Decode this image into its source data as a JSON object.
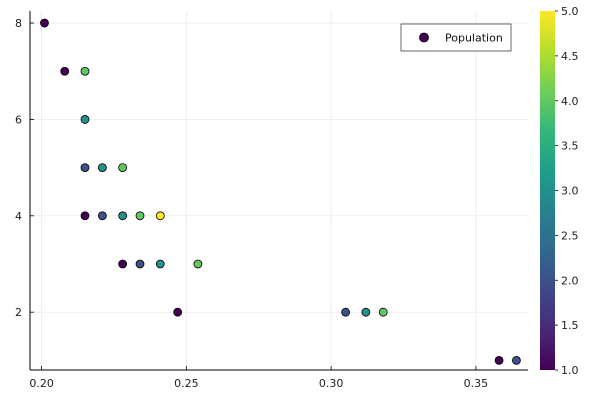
{
  "chart_data": {
    "type": "scatter",
    "title": "",
    "xlabel": "",
    "ylabel": "",
    "xlim": [
      0.196,
      0.368
    ],
    "ylim": [
      0.8,
      8.25
    ],
    "x_ticks": [
      0.2,
      0.25,
      0.3,
      0.35
    ],
    "x_tick_labels": [
      "0.20",
      "0.25",
      "0.30",
      "0.35"
    ],
    "y_ticks": [
      2,
      4,
      6,
      8
    ],
    "y_tick_labels": [
      "2",
      "4",
      "6",
      "8"
    ],
    "grid": true,
    "legend": {
      "entries": [
        "Population"
      ],
      "position": "top-right"
    },
    "colorbar": {
      "colormap": "viridis",
      "min": 1.0,
      "max": 5.0,
      "ticks": [
        1.0,
        1.5,
        2.0,
        2.5,
        3.0,
        3.5,
        4.0,
        4.5,
        5.0
      ],
      "tick_labels": [
        "1.0",
        "1.5",
        "2.0",
        "2.5",
        "3.0",
        "3.5",
        "4.0",
        "4.5",
        "5.0"
      ]
    },
    "series": [
      {
        "name": "Population",
        "points": [
          {
            "x": 0.201,
            "y": 8,
            "c": 1
          },
          {
            "x": 0.208,
            "y": 7,
            "c": 1
          },
          {
            "x": 0.215,
            "y": 7,
            "c": 4
          },
          {
            "x": 0.215,
            "y": 6,
            "c": 3
          },
          {
            "x": 0.215,
            "y": 5,
            "c": 2
          },
          {
            "x": 0.221,
            "y": 5,
            "c": 3
          },
          {
            "x": 0.228,
            "y": 5,
            "c": 4
          },
          {
            "x": 0.215,
            "y": 4,
            "c": 1
          },
          {
            "x": 0.221,
            "y": 4,
            "c": 2
          },
          {
            "x": 0.228,
            "y": 4,
            "c": 3
          },
          {
            "x": 0.234,
            "y": 4,
            "c": 4
          },
          {
            "x": 0.241,
            "y": 4,
            "c": 5
          },
          {
            "x": 0.228,
            "y": 3,
            "c": 1
          },
          {
            "x": 0.234,
            "y": 3,
            "c": 2
          },
          {
            "x": 0.241,
            "y": 3,
            "c": 3
          },
          {
            "x": 0.254,
            "y": 3,
            "c": 4
          },
          {
            "x": 0.247,
            "y": 2,
            "c": 1
          },
          {
            "x": 0.305,
            "y": 2,
            "c": 2
          },
          {
            "x": 0.312,
            "y": 2,
            "c": 3
          },
          {
            "x": 0.318,
            "y": 2,
            "c": 4
          },
          {
            "x": 0.358,
            "y": 1,
            "c": 1
          },
          {
            "x": 0.364,
            "y": 1,
            "c": 2
          }
        ]
      }
    ]
  }
}
